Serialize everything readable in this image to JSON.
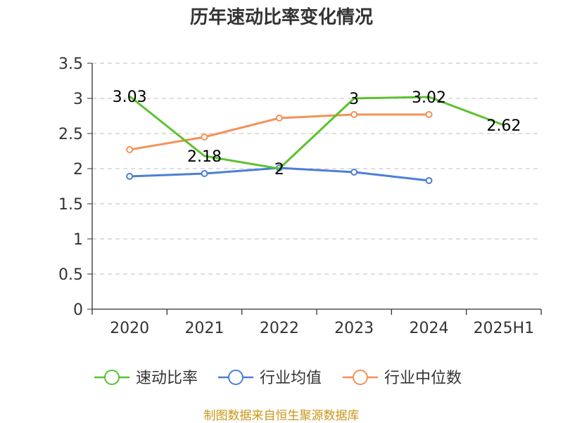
{
  "chart_data": {
    "type": "line",
    "title": "历年速动比率变化情况",
    "categories": [
      "2020",
      "2021",
      "2022",
      "2023",
      "2024",
      "2025H1"
    ],
    "ylim": [
      0,
      3.5
    ],
    "yticks": [
      "0",
      "0.5",
      "1",
      "1.5",
      "2",
      "2.5",
      "3",
      "3.5"
    ],
    "grid": true,
    "legend_position": "bottom",
    "series": [
      {
        "name": "速动比率",
        "color": "#5cc22e",
        "values": [
          3.03,
          2.18,
          2.0,
          3.0,
          3.02,
          2.62
        ],
        "labels": [
          "3.03",
          "2.18",
          "2",
          "3",
          "3.02",
          "2.62"
        ],
        "show_markers": false
      },
      {
        "name": "行业均值",
        "color": "#4a7fd6",
        "values": [
          1.89,
          1.93,
          2.01,
          1.95,
          1.83,
          null
        ],
        "labels": [],
        "show_markers": true
      },
      {
        "name": "行业中位数",
        "color": "#f39257",
        "values": [
          2.27,
          2.45,
          2.72,
          2.77,
          2.77,
          null
        ],
        "labels": [],
        "show_markers": true
      }
    ]
  },
  "source": "制图数据来自恒生聚源数据库"
}
